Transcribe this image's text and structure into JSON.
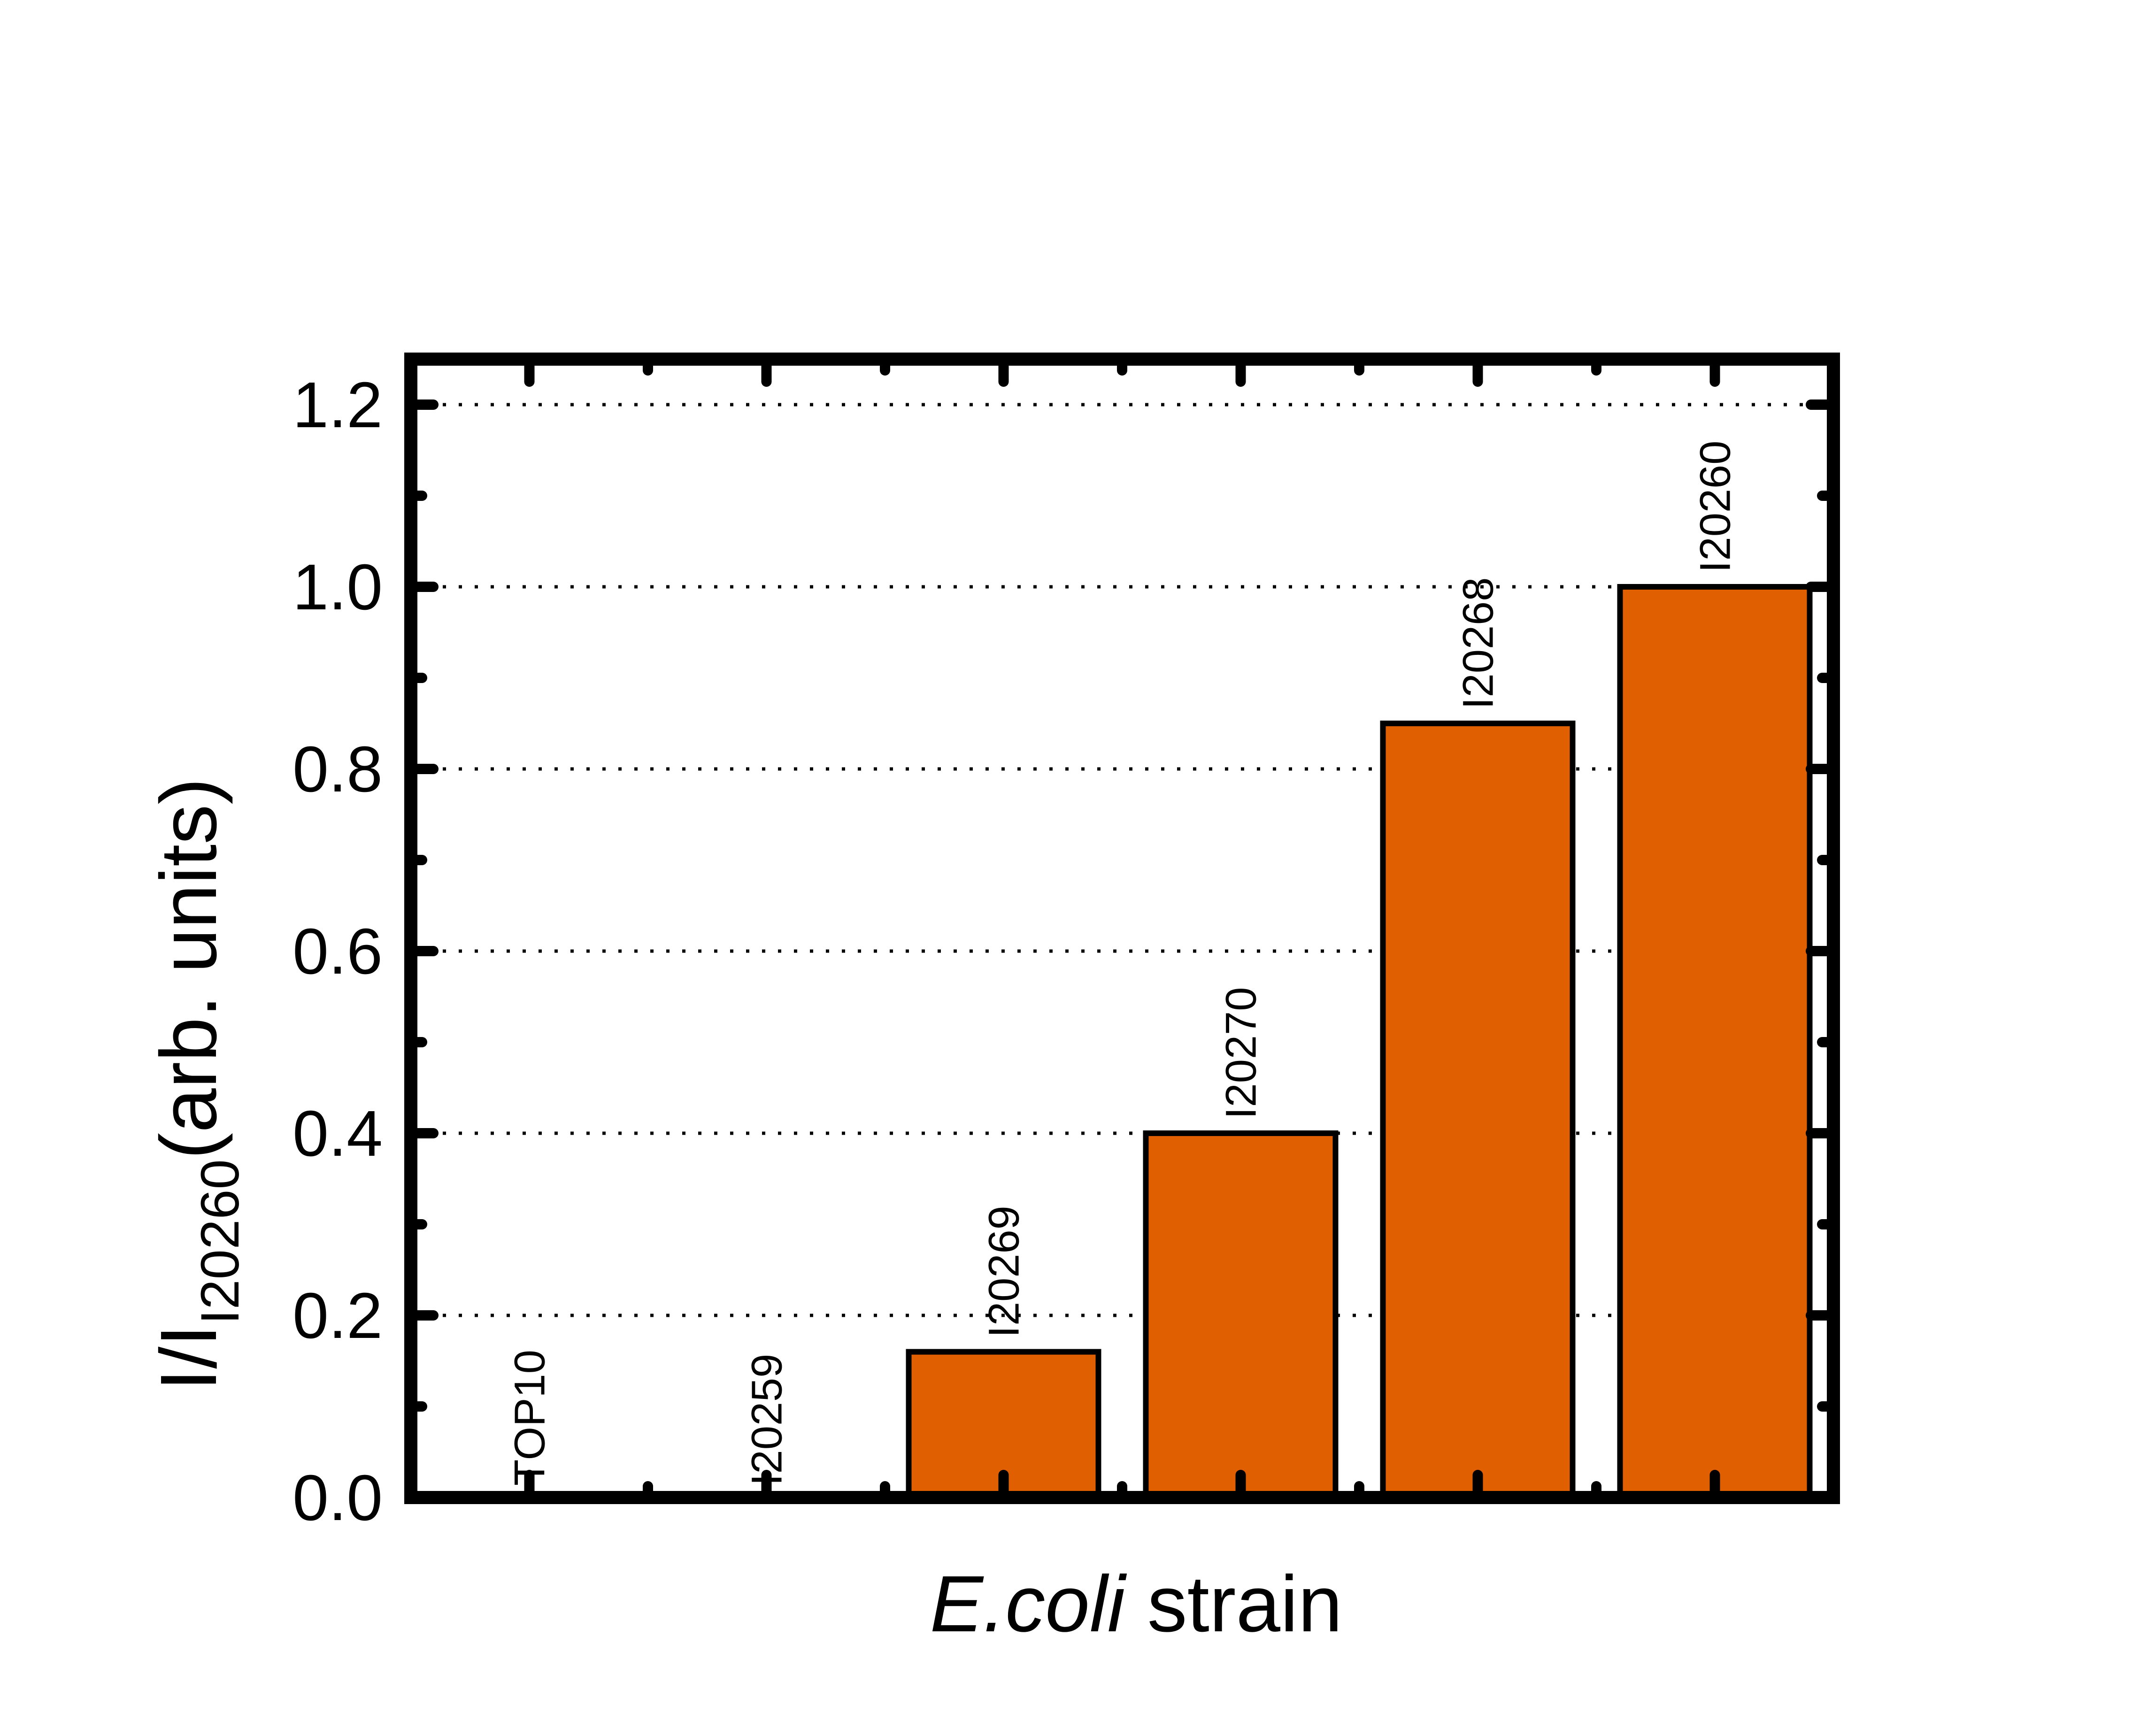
{
  "chart_data": {
    "type": "bar",
    "categories": [
      "TOP10",
      "I20259",
      "I20269",
      "I20270",
      "I20268",
      "I20260"
    ],
    "values": [
      0.0,
      0.0,
      0.16,
      0.4,
      0.85,
      1.0
    ],
    "bar_labels": [
      "TOP10",
      "I20259",
      "I20269",
      "I20270",
      "I20268",
      "I20260"
    ],
    "xlabel": {
      "italic": "E.coli",
      "rest": " strain"
    },
    "ylabel": {
      "main": "I/I",
      "sub": "I20260",
      "rest": "(arb. units)"
    },
    "ylim": [
      0,
      1.25
    ],
    "yticks": [
      "0.0",
      "0.2",
      "0.4",
      "0.6",
      "0.8",
      "1.0",
      "1.2"
    ],
    "ytick_values": [
      0,
      0.2,
      0.4,
      0.6,
      0.8,
      1.0,
      1.2
    ],
    "grid": "dotted horizontal",
    "bar_color": "#e05f00",
    "axis_color": "#000000"
  }
}
